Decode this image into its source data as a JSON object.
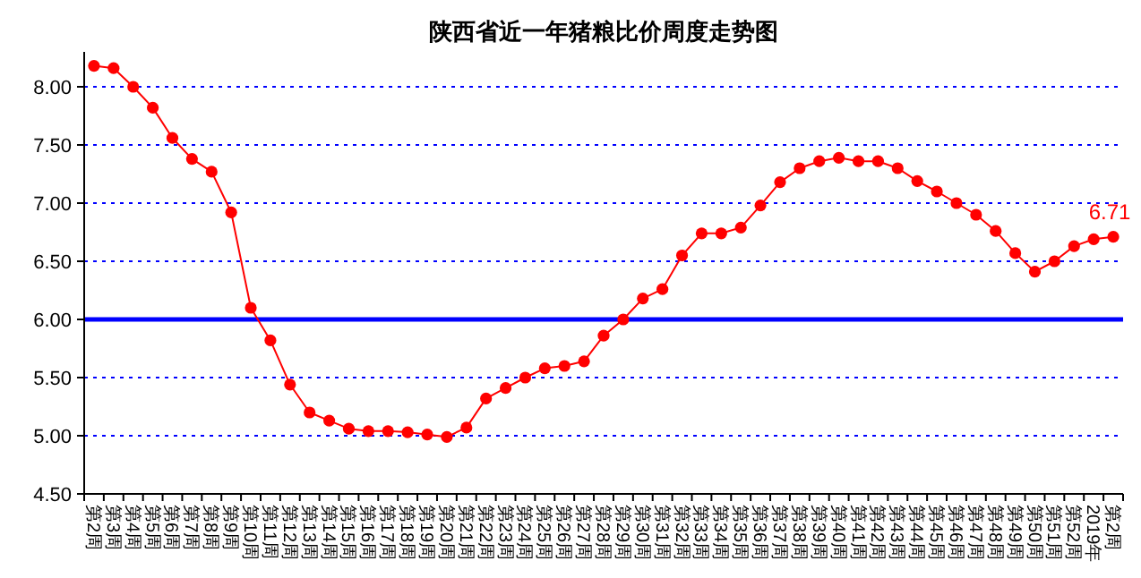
{
  "chart_data": {
    "type": "line",
    "title": "陕西省近一年猪粮比价周度走势图",
    "categories": [
      "第2周",
      "第3周",
      "第4周",
      "第5周",
      "第6周",
      "第7周",
      "第8周",
      "第9周",
      "第10周",
      "第11周",
      "第12周",
      "第13周",
      "第14周",
      "第15周",
      "第16周",
      "第17周",
      "第18周",
      "第19周",
      "第20周",
      "第21周",
      "第22周",
      "第23周",
      "第24周",
      "第25周",
      "第26周",
      "第27周",
      "第28周",
      "第29周",
      "第30周",
      "第31周",
      "第32周",
      "第33周",
      "第34周",
      "第35周",
      "第36周",
      "第37周",
      "第38周",
      "第39周",
      "第40周",
      "第41周",
      "第42周",
      "第43周",
      "第44周",
      "第45周",
      "第46周",
      "第47周",
      "第48周",
      "第49周",
      "第50周",
      "第51周",
      "第52周",
      "2019年",
      "第2周"
    ],
    "series": [
      {
        "color": "#ff0000",
        "values": [
          8.18,
          8.16,
          8.0,
          7.82,
          7.56,
          7.38,
          7.27,
          6.92,
          6.1,
          5.82,
          5.44,
          5.2,
          5.13,
          5.06,
          5.04,
          5.04,
          5.03,
          5.01,
          4.99,
          5.07,
          5.32,
          5.41,
          5.5,
          5.58,
          5.6,
          5.64,
          5.86,
          6.0,
          6.18,
          6.26,
          6.55,
          6.74,
          6.74,
          6.79,
          6.98,
          7.18,
          7.3,
          7.36,
          7.39,
          7.36,
          7.36,
          7.3,
          7.19,
          7.1,
          7.0,
          6.9,
          6.76,
          6.57,
          6.41,
          6.5,
          6.63,
          6.69,
          6.71
        ],
        "value_labels": [
          null,
          null,
          null,
          null,
          null,
          null,
          null,
          null,
          null,
          null,
          null,
          null,
          null,
          null,
          null,
          null,
          null,
          null,
          null,
          null,
          null,
          null,
          null,
          null,
          null,
          null,
          null,
          null,
          null,
          null,
          null,
          null,
          null,
          null,
          null,
          null,
          null,
          null,
          null,
          null,
          null,
          null,
          null,
          null,
          null,
          null,
          null,
          null,
          null,
          null,
          null,
          null,
          "6.71"
        ]
      }
    ],
    "ylim": [
      4.5,
      8.3
    ],
    "yticks": [
      {
        "value": 4.5,
        "label": "4.50"
      },
      {
        "value": 5,
        "label": "5.00"
      },
      {
        "value": 5.5,
        "label": "5.50"
      },
      {
        "value": 6,
        "label": "6.00"
      },
      {
        "value": 6.5,
        "label": "6.50"
      },
      {
        "value": 7,
        "label": "7.00"
      },
      {
        "value": 7.5,
        "label": "7.50"
      },
      {
        "value": 8,
        "label": "8.00"
      }
    ],
    "grid": "y",
    "marker": "circle",
    "line_style": "solid",
    "ref_lines": [
      {
        "axis": "y",
        "value": 6,
        "color": "#0000ff",
        "line_style": "solid"
      }
    ]
  }
}
